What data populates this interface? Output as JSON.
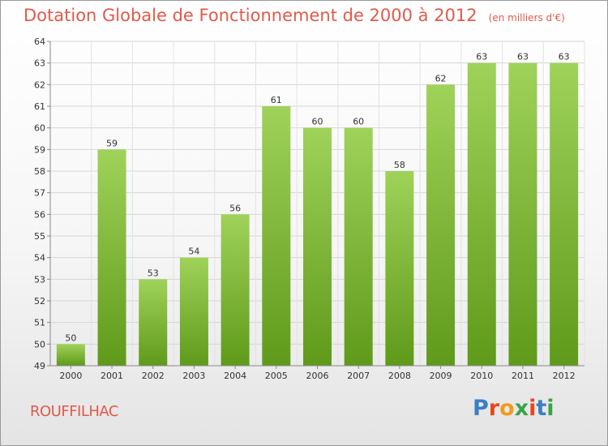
{
  "header": {
    "title": "Dotation Globale de Fonctionnement de 2000 à 2012",
    "subtitle": "(en milliers d'€)"
  },
  "footer": {
    "commune": "ROUFFILHAC",
    "logo_text": "Proxiti",
    "logo_colors": [
      "#3b7fc4",
      "#e8461e",
      "#f29a1d",
      "#3ba34a",
      "#e8461e",
      "#3b7fc4",
      "#3ba34a"
    ]
  },
  "colors": {
    "bar_top": "#9fd25a",
    "bar_bottom": "#5f9a1a",
    "title": "#e05a4b"
  },
  "chart_data": {
    "type": "bar",
    "categories": [
      "2000",
      "2001",
      "2002",
      "2003",
      "2004",
      "2005",
      "2006",
      "2007",
      "2008",
      "2009",
      "2010",
      "2011",
      "2012"
    ],
    "values": [
      50,
      59,
      53,
      54,
      56,
      61,
      60,
      60,
      58,
      62,
      63,
      63,
      63
    ],
    "ylim": [
      49,
      64
    ],
    "yticks": [
      49,
      50,
      51,
      52,
      53,
      54,
      55,
      56,
      57,
      58,
      59,
      60,
      61,
      62,
      63,
      64
    ],
    "grid": true,
    "legend": "none"
  }
}
